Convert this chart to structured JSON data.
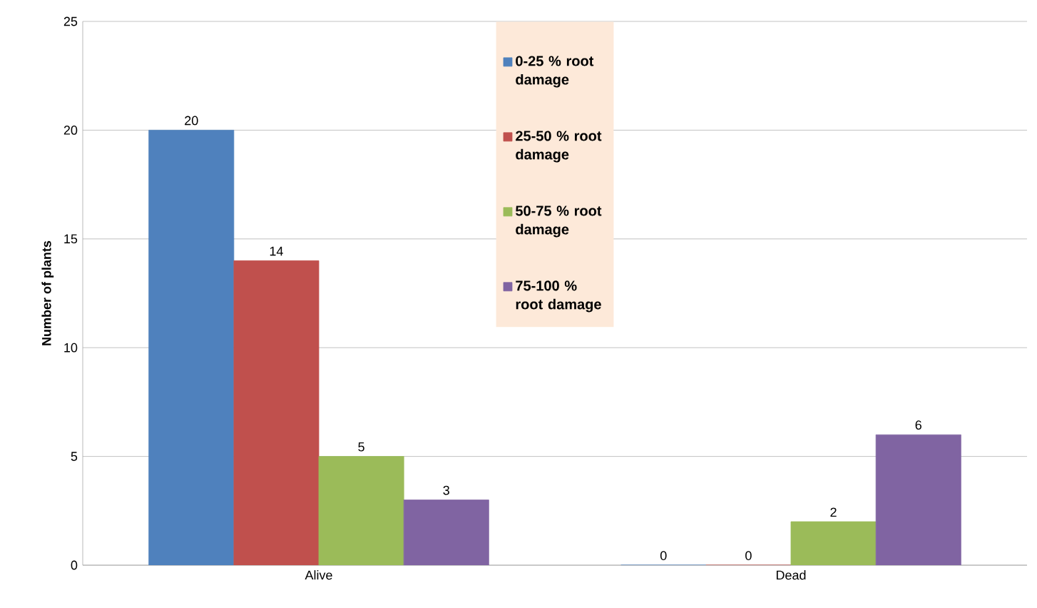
{
  "chart_data": {
    "type": "bar",
    "categories": [
      "Alive",
      "Dead"
    ],
    "ylabel": "Number of plants",
    "ylim": [
      0,
      25
    ],
    "yticks": [
      0,
      5,
      10,
      15,
      20,
      25
    ],
    "grid": "y",
    "legend": "top",
    "data_labels": true,
    "series": [
      {
        "name": "0-25 % root damage",
        "color": "#4f81bd",
        "values": [
          20,
          0
        ]
      },
      {
        "name": "25-50 % root damage",
        "color": "#c0504d",
        "values": [
          14,
          0
        ]
      },
      {
        "name": "50-75 % root damage",
        "color": "#9bbb59",
        "values": [
          5,
          2
        ]
      },
      {
        "name": "75-100 % root damage",
        "color": "#8064a2",
        "values": [
          3,
          6
        ]
      }
    ]
  }
}
